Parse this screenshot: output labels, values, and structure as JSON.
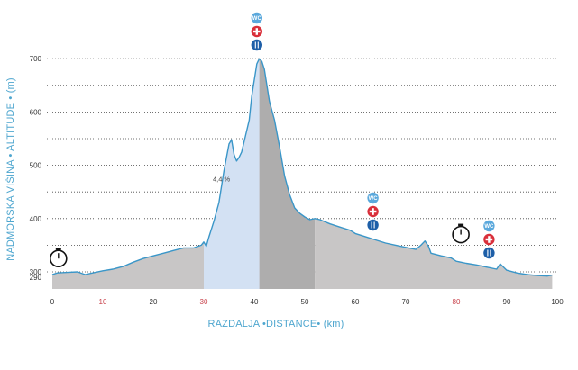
{
  "chart_data": {
    "type": "area",
    "xlabel": "RAZDALJA •DISTANCE• (km)",
    "ylabel": "NADMORSKA VIŠINA • ALTITUDE • (m)",
    "x_ticks": [
      "0",
      "10",
      "20",
      "30",
      "40",
      "50",
      "60",
      "70",
      "80",
      "90",
      "100"
    ],
    "y_ticks": [
      "290",
      "300",
      "400",
      "500",
      "600",
      "700"
    ],
    "xlim": [
      0,
      100
    ],
    "ylim": [
      290,
      710
    ],
    "grid": "horizontal dotted",
    "series": [
      {
        "x": [
          0,
          1,
          3,
          5,
          6.5,
          8,
          10,
          12,
          14,
          16,
          18,
          20,
          22,
          24,
          26,
          28,
          29.5,
          30,
          30.5,
          31,
          32,
          33,
          34,
          35,
          35.5,
          36,
          36.5,
          37,
          37.5,
          38,
          39,
          39.5,
          40,
          40.5,
          41,
          41.5,
          42,
          42.5,
          43,
          44,
          45,
          46,
          47,
          48,
          49,
          50,
          51,
          52,
          53,
          54,
          55,
          57,
          59,
          60,
          62,
          64,
          66,
          68,
          70,
          72,
          73,
          73.8,
          74.5,
          75,
          77,
          79,
          80,
          82,
          84,
          86,
          88,
          88.7,
          90,
          92,
          94,
          96,
          98,
          99
        ],
        "y": [
          295,
          298,
          299,
          300,
          295,
          298,
          302,
          305,
          310,
          318,
          325,
          330,
          335,
          340,
          345,
          345,
          350,
          356,
          348,
          365,
          395,
          430,
          490,
          540,
          548,
          520,
          508,
          515,
          525,
          545,
          585,
          630,
          660,
          690,
          700,
          695,
          680,
          650,
          620,
          585,
          535,
          480,
          445,
          420,
          410,
          403,
          398,
          400,
          398,
          394,
          390,
          384,
          378,
          372,
          366,
          360,
          354,
          350,
          346,
          342,
          350,
          358,
          348,
          335,
          330,
          326,
          320,
          316,
          313,
          309,
          305,
          315,
          303,
          298,
          295,
          293,
          292,
          294
        ]
      }
    ],
    "segments": [
      {
        "from_km": 0,
        "to_km": 30,
        "color": "#c8c6c6"
      },
      {
        "from_km": 30,
        "to_km": 41,
        "color": "#d3e1f3"
      },
      {
        "from_km": 41,
        "to_km": 52,
        "color": "#aeadad"
      },
      {
        "from_km": 52,
        "to_km": 100,
        "color": "#c8c6c6"
      }
    ],
    "annotations": [
      {
        "text": "4,4 %",
        "x_km": 33.5,
        "alt": 470
      }
    ],
    "markers": {
      "stopwatch": [
        {
          "x_km": 0.5,
          "alt": 325
        },
        {
          "x_km": 80.2,
          "alt": 370
        }
      ],
      "service_stacks": [
        {
          "x_km": 40.5,
          "items": [
            "wc",
            "first-aid",
            "food"
          ]
        },
        {
          "x_km": 63.5,
          "items": [
            "wc",
            "first-aid",
            "food"
          ]
        },
        {
          "x_km": 86.5,
          "items": [
            "wc",
            "first-aid",
            "food"
          ]
        }
      ]
    },
    "colors": {
      "line": "#3a96c8",
      "axis_title": "#4ea6cf",
      "wc_icon": "#5aa8dc",
      "first_aid_icon": "#d92f3a",
      "food_icon": "#1e5fa8",
      "red_ticks": "#c8414a"
    },
    "red_x_ticks": [
      "10",
      "30",
      "80"
    ]
  }
}
